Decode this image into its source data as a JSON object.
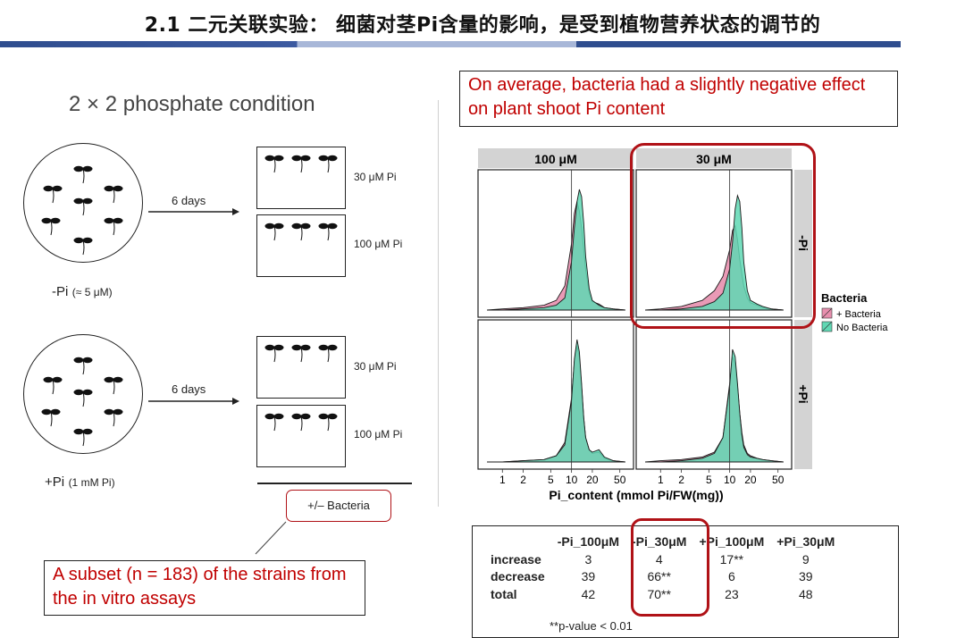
{
  "title": "2.1  二元关联实验： 细菌对茎Pi含量的影响，是受到植物营养状态的调节的",
  "left": {
    "heading": "2 × 2 phosphate condition",
    "arrow_label": "6 days",
    "box_30": "30 μM Pi",
    "box_100": "100 μM Pi",
    "dish_minus_label": "-Pi",
    "dish_minus_sub": "(≈ 5 μM)",
    "dish_plus_label": "+Pi",
    "dish_plus_sub": "(1 mM Pi)",
    "bacteria_tag": "+/– Bacteria",
    "subset_note": "A subset (n = 183) of the strains from the in vitro assays"
  },
  "right": {
    "callout": "On average, bacteria had a slightly negative effect on plant shoot Pi content"
  },
  "chart_data": {
    "type": "area",
    "kind": "density",
    "facet_columns": [
      "100 μM",
      "30 μM"
    ],
    "facet_rows": [
      "-Pi",
      "+Pi"
    ],
    "xlabel": "Pi_content (mmol Pi/FW(mg))",
    "x_scale": "log",
    "xlim": [
      0.5,
      70
    ],
    "x_ticks": [
      1,
      2,
      5,
      10,
      20,
      50
    ],
    "reference_line_x": 10,
    "legend": {
      "title": "Bacteria",
      "placement": "right",
      "entries": [
        "+ Bacteria",
        "No Bacteria"
      ]
    },
    "colors": {
      "+ Bacteria": "#e78fae",
      "No Bacteria": "#5fd8b4",
      "strip": "#d3d3d3"
    },
    "x": [
      0.6,
      1,
      2,
      4,
      6,
      8,
      10,
      11,
      12,
      13,
      14,
      15,
      16,
      18,
      20,
      25,
      30,
      40,
      60
    ],
    "panels": [
      {
        "col": "100 μM",
        "row": "-Pi",
        "series": [
          {
            "name": "+ Bacteria",
            "values": [
              0,
              0.01,
              0.02,
              0.04,
              0.08,
              0.2,
              0.55,
              0.8,
              0.9,
              0.82,
              0.68,
              0.5,
              0.34,
              0.14,
              0.07,
              0.05,
              0.02,
              0.01,
              0
            ]
          },
          {
            "name": "No Bacteria",
            "values": [
              0,
              0,
              0.01,
              0.02,
              0.04,
              0.1,
              0.4,
              0.68,
              0.9,
              1.0,
              0.94,
              0.72,
              0.45,
              0.18,
              0.08,
              0.04,
              0.02,
              0.01,
              0
            ]
          }
        ]
      },
      {
        "col": "30 μM",
        "row": "-Pi",
        "series": [
          {
            "name": "+ Bacteria",
            "values": [
              0,
              0.01,
              0.03,
              0.08,
              0.16,
              0.28,
              0.5,
              0.66,
              0.7,
              0.58,
              0.42,
              0.3,
              0.2,
              0.1,
              0.06,
              0.04,
              0.02,
              0.01,
              0
            ]
          },
          {
            "name": "No Bacteria",
            "values": [
              0,
              0,
              0.01,
              0.03,
              0.07,
              0.14,
              0.34,
              0.56,
              0.84,
              0.95,
              0.9,
              0.68,
              0.4,
              0.16,
              0.08,
              0.05,
              0.03,
              0.01,
              0
            ]
          }
        ]
      },
      {
        "col": "100 μM",
        "row": "+Pi",
        "series": [
          {
            "name": "+ Bacteria",
            "values": [
              0,
              0,
              0.01,
              0.02,
              0.05,
              0.16,
              0.52,
              0.82,
              0.95,
              0.86,
              0.62,
              0.36,
              0.2,
              0.1,
              0.07,
              0.08,
              0.03,
              0.01,
              0
            ]
          },
          {
            "name": "No Bacteria",
            "values": [
              0,
              0,
              0.01,
              0.02,
              0.05,
              0.14,
              0.5,
              0.84,
              1.0,
              0.9,
              0.64,
              0.36,
              0.2,
              0.1,
              0.08,
              0.1,
              0.04,
              0.01,
              0
            ]
          }
        ]
      },
      {
        "col": "30 μM",
        "row": "+Pi",
        "series": [
          {
            "name": "+ Bacteria",
            "values": [
              0,
              0.01,
              0.02,
              0.04,
              0.08,
              0.2,
              0.64,
              0.86,
              0.8,
              0.62,
              0.4,
              0.24,
              0.14,
              0.07,
              0.05,
              0.03,
              0.02,
              0.01,
              0
            ]
          },
          {
            "name": "No Bacteria",
            "values": [
              0,
              0,
              0.01,
              0.03,
              0.07,
              0.2,
              0.62,
              0.92,
              0.86,
              0.64,
              0.4,
              0.22,
              0.12,
              0.06,
              0.04,
              0.03,
              0.02,
              0.01,
              0
            ]
          }
        ]
      }
    ]
  },
  "stats_table": {
    "columns": [
      "",
      "-Pi_100μM",
      "-Pi_30μM",
      "+Pi_100μM",
      "+Pi_30μM"
    ],
    "rows": [
      {
        "label": "increase",
        "cells": [
          "3",
          "4",
          "17**",
          "9"
        ]
      },
      {
        "label": "decrease",
        "cells": [
          "39",
          "66**",
          "6",
          "39"
        ]
      },
      {
        "label": "total",
        "cells": [
          "42",
          "70**",
          "23",
          "48"
        ]
      }
    ],
    "note": "**p-value < 0.01"
  }
}
